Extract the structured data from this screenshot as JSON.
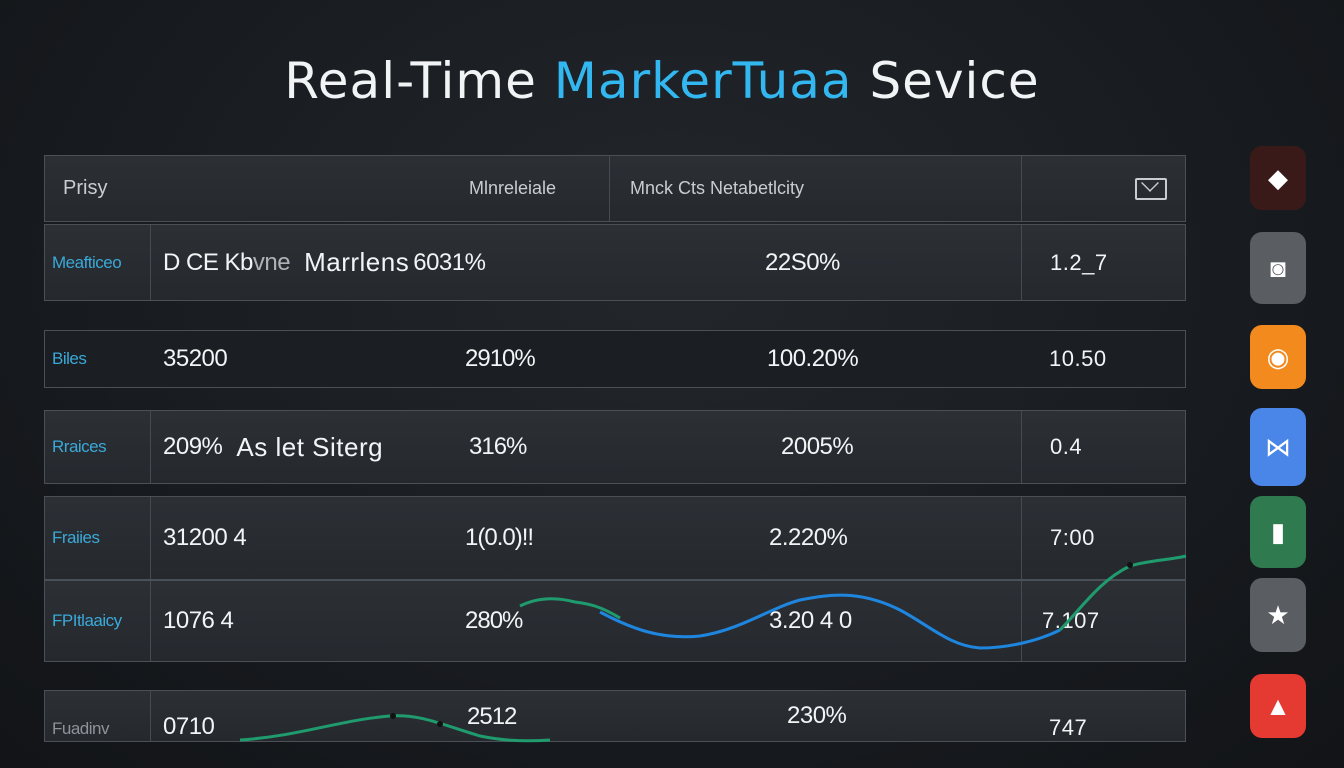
{
  "header": {
    "title_pre": "Real-Time ",
    "title_accent": "MarkerTuaa",
    "title_post": " Sevice"
  },
  "table_header": {
    "c1": "Prisy",
    "c2": "Mlnreleiale",
    "c3": "Mnck Cts Netabetlcity"
  },
  "rows": [
    {
      "label": "Meafticeo",
      "c1a": "D CE Kb",
      "c1b": "vne",
      "c1c": "Marrlens",
      "c2": "6031%",
      "c3": "22S0%",
      "c4": "1.2_7"
    },
    {
      "label": "Biles",
      "c1": "35200",
      "c2": "2910%",
      "c3": "100.20%",
      "c4": "10.50"
    },
    {
      "label": "Rraices",
      "c1a": "209%",
      "c1b": "As let Siterg",
      "c2": "316%",
      "c3": "2005%",
      "c4": "0.4"
    },
    {
      "label": "Fraiies",
      "c1": "31200 4",
      "c2": "1(0.0)!!",
      "c3": "2.220%",
      "c4": "7:00"
    },
    {
      "label": "FPItlaaicy",
      "c1": "1076 4",
      "c2": "280%",
      "c3": "3.20 4 0",
      "c4": "7.107"
    },
    {
      "label": "Fuadinv",
      "c1": "0710",
      "c2": "2512",
      "c3": "230%",
      "c4": "747"
    }
  ],
  "sidebar": [
    {
      "name": "diamond-icon",
      "glyph": "◆",
      "color": "#3a1a18"
    },
    {
      "name": "photo-icon",
      "glyph": "◙",
      "color": "#5a5e63"
    },
    {
      "name": "chat-icon",
      "glyph": "◉",
      "color": "#f28a1e"
    },
    {
      "name": "bowtie-icon",
      "glyph": "⋈",
      "color": "#4a86e8"
    },
    {
      "name": "mouse-icon",
      "glyph": "▮",
      "color": "#2f7a4f"
    },
    {
      "name": "star-icon",
      "glyph": "★",
      "color": "#5a5e63"
    },
    {
      "name": "image-icon",
      "glyph": "▲",
      "color": "#e53a31"
    }
  ],
  "colors": {
    "accent": "#33b7f0",
    "line_blue": "#1f86e0",
    "line_green": "#1f9b6e"
  }
}
